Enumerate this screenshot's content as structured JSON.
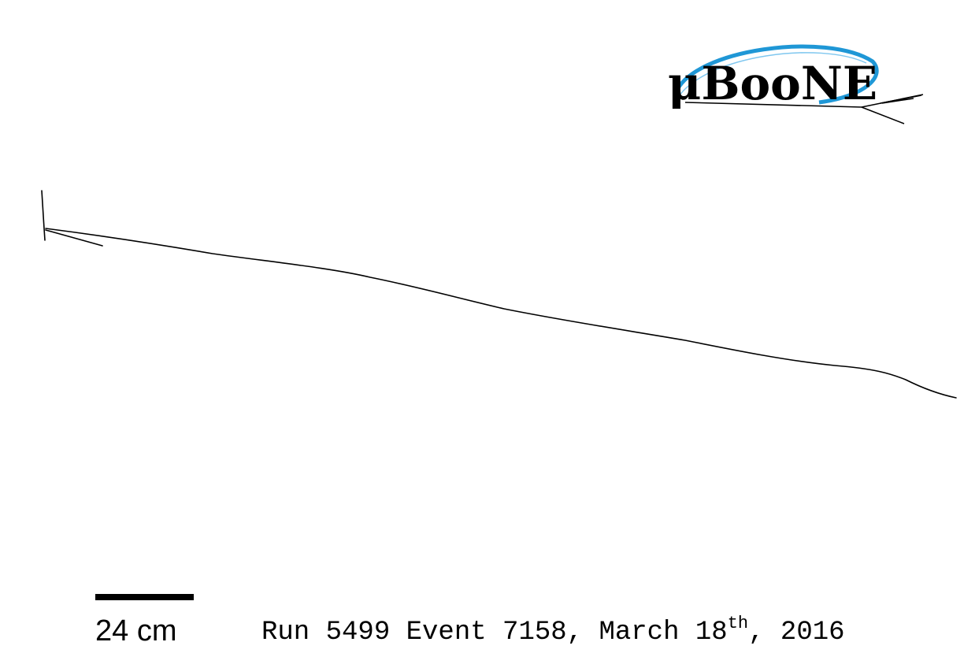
{
  "logo": {
    "text": "μBooNE",
    "icon": "uboone-logo-icon",
    "colors": {
      "text": "#000000",
      "ellipse_outer": "#1f97d6",
      "ellipse_inner": "#7fc7ef"
    }
  },
  "scale_bar": {
    "label": "24 cm",
    "color": "#000000"
  },
  "caption": {
    "prefix": "Run 5499 Event 7158, March 18",
    "ordinal": "th",
    "suffix": ", 2016"
  },
  "tracks": {
    "color": "#000000",
    "icon": "particle-track-icon"
  }
}
